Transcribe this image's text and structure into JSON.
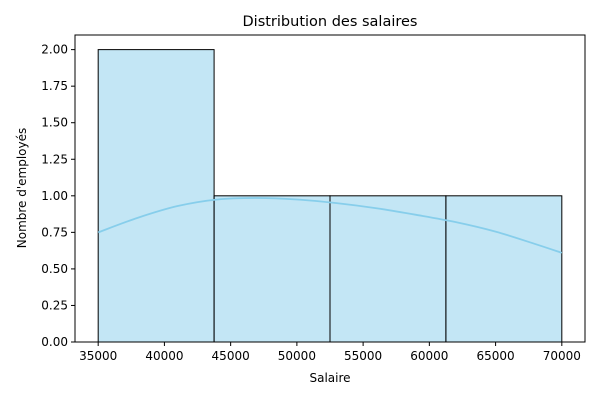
{
  "chart_data": {
    "type": "bar",
    "title": "Distribution des salaires",
    "xlabel": "Salaire",
    "ylabel": "Nombre d'employés",
    "bins": [
      {
        "start": 35000,
        "end": 43750,
        "count": 2
      },
      {
        "start": 43750,
        "end": 52500,
        "count": 1
      },
      {
        "start": 52500,
        "end": 61250,
        "count": 1
      },
      {
        "start": 61250,
        "end": 70000,
        "count": 1
      }
    ],
    "kde": {
      "x": [
        35000,
        38000,
        41000,
        44000,
        47000,
        50000,
        53000,
        56000,
        59000,
        62000,
        65000,
        68000,
        70000
      ],
      "y": [
        0.75,
        0.85,
        0.93,
        0.975,
        0.985,
        0.975,
        0.95,
        0.915,
        0.87,
        0.82,
        0.755,
        0.67,
        0.61
      ]
    },
    "xlim": [
      33250,
      71750
    ],
    "ylim": [
      0,
      2.1
    ],
    "xticks": [
      35000,
      40000,
      45000,
      50000,
      55000,
      60000,
      65000,
      70000
    ],
    "xtick_labels": [
      "35000",
      "40000",
      "45000",
      "50000",
      "55000",
      "60000",
      "65000",
      "70000"
    ],
    "yticks": [
      0,
      0.25,
      0.5,
      0.75,
      1.0,
      1.25,
      1.5,
      1.75,
      2.0
    ],
    "ytick_labels": [
      "0.00",
      "0.25",
      "0.50",
      "0.75",
      "1.00",
      "1.25",
      "1.50",
      "1.75",
      "2.00"
    ],
    "grid": false,
    "bar_color": "#87ceeb",
    "bar_opacity": 0.5,
    "bar_edge_color": "#000000",
    "kde_color": "#87ceeb"
  }
}
